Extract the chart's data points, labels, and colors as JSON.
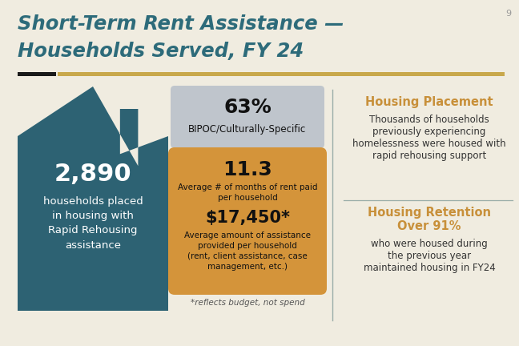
{
  "bg_color": "#f0ece0",
  "title_line1": "Short-Term Rent Assistance —",
  "title_line2": "Households Served, FY 24",
  "title_color": "#2d6b7a",
  "title_fontsize": 17.5,
  "page_number": "9",
  "accent_bar_gold_color": "#c8a84b",
  "accent_bar_dark_color": "#1a1a1a",
  "house_color": "#2d6273",
  "house_number": "2,890",
  "house_line1": "households placed",
  "house_line2": "in housing with",
  "house_line3": "Rapid Rehousing",
  "house_line4": "assistance",
  "house_text_color": "#ffffff",
  "gray_box_color": "#bfc5cc",
  "gray_box_pct": "63%",
  "gray_box_sub": "BIPOC/Culturally-Specific",
  "gray_box_text_color": "#111111",
  "orange_box_color": "#d4943a",
  "orange_number": "11.3",
  "orange_line1": "Average # of months of rent paid",
  "orange_line2": "per household",
  "orange_dollar": "$17,450*",
  "orange_desc1": "Average amount of assistance",
  "orange_desc2": "provided per household",
  "orange_desc3": "(rent, client assistance, case",
  "orange_desc4": "management, etc.)",
  "orange_text_color": "#111111",
  "footnote": "*reflects budget, not spend",
  "divider_color": "#9aada8",
  "right_head1": "Housing Placement",
  "right_head1_color": "#c8903a",
  "right_text1a": "Thousands of households",
  "right_text1b": "previously experiencing",
  "right_text1c": "homelessness were housed with",
  "right_text1d": "rapid rehousing support",
  "right_head2": "Housing Retention",
  "right_head2b": "Over 91%",
  "right_head2_color": "#c8903a",
  "right_text2a": "who were housed during",
  "right_text2b": "the previous year",
  "right_text2c": "maintained housing in FY24",
  "right_text_color": "#333333"
}
